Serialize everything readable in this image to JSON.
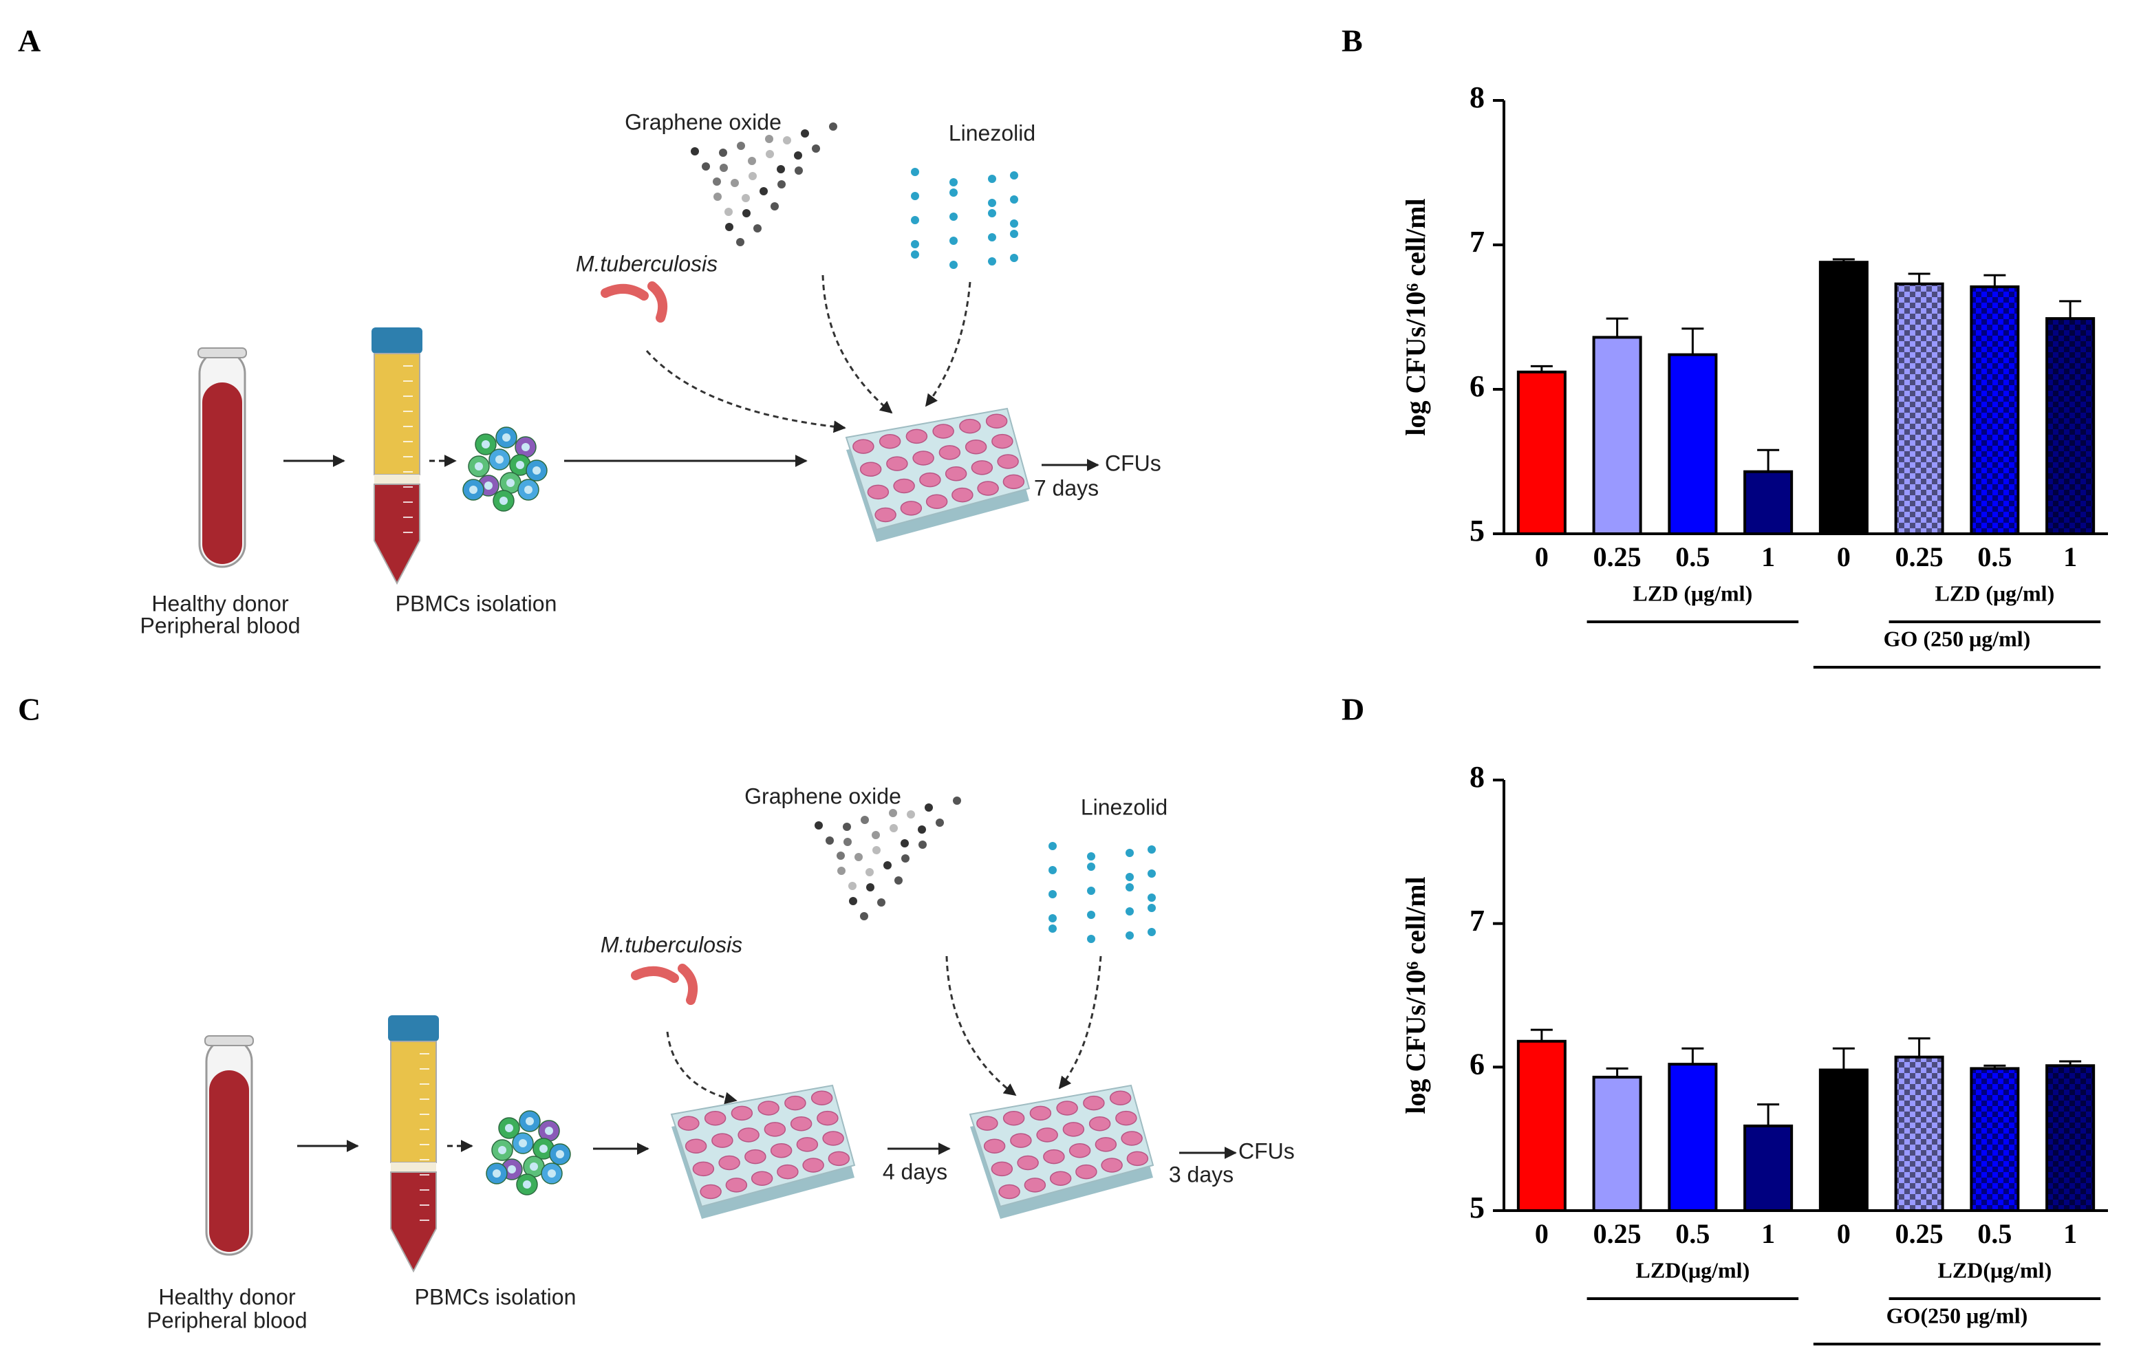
{
  "panel_labels": [
    "A",
    "B",
    "C",
    "D"
  ],
  "schematics": [
    {
      "graphene": "Graphene oxide",
      "linezolid": "Linezolid",
      "pathogen": "M.tuberculosis",
      "readout": "CFUs",
      "durations": [
        "7 days"
      ],
      "donor": [
        "Healthy donor",
        "Peripheral blood"
      ],
      "isolation": "PBMCs isolation"
    },
    {
      "graphene": "Graphene oxide",
      "linezolid": "Linezolid",
      "pathogen": "M.tuberculosis",
      "readout": "CFUs",
      "durations": [
        "4 days",
        "3 days"
      ],
      "donor": [
        "Healthy donor",
        "Peripheral blood"
      ],
      "isolation": "PBMCs isolation"
    }
  ],
  "chart_data": [
    {
      "type": "bar",
      "ylabel": "log CFUs/10⁶ cell/ml",
      "categories": [
        "0",
        "0.25",
        "0.5",
        "1",
        "0",
        "0.25",
        "0.5",
        "1"
      ],
      "values": [
        6.12,
        6.36,
        6.24,
        5.43,
        6.88,
        6.73,
        6.71,
        6.49
      ],
      "errors": [
        0.04,
        0.13,
        0.18,
        0.15,
        0.02,
        0.07,
        0.08,
        0.12
      ],
      "colors": [
        "#ff0000",
        "#9999ff",
        "#0000ff",
        "#000080",
        "#000000",
        "#9999ff",
        "#0000ff",
        "#000080"
      ],
      "patterns": [
        "solid",
        "solid",
        "solid",
        "solid",
        "solid",
        "checkered",
        "checkered",
        "checkered"
      ],
      "ylim": [
        5,
        8
      ],
      "yticks": [
        5,
        6,
        7,
        8
      ],
      "groups": [
        {
          "label": "LZD (μg/ml)",
          "from": 1,
          "to": 3
        },
        {
          "label": "LZD (μg/ml)",
          "from": 5,
          "to": 7
        },
        {
          "label": "GO (250 μg/ml)",
          "from": 4,
          "to": 7
        }
      ],
      "comparisons": [
        {
          "from": 0,
          "to": 3,
          "label": "*"
        },
        {
          "from": 0,
          "to": 4,
          "label": "****"
        },
        {
          "from": 0,
          "to": 5,
          "label": "***"
        },
        {
          "from": 0,
          "to": 6,
          "label": "***"
        }
      ]
    },
    {
      "type": "bar",
      "ylabel": "log CFUs/10⁶ cell/ml",
      "categories": [
        "0",
        "0.25",
        "0.5",
        "1",
        "0",
        "0.25",
        "0.5",
        "1"
      ],
      "values": [
        6.18,
        5.93,
        6.02,
        5.59,
        5.98,
        6.07,
        5.99,
        6.01
      ],
      "errors": [
        0.08,
        0.06,
        0.11,
        0.15,
        0.15,
        0.13,
        0.02,
        0.03
      ],
      "colors": [
        "#ff0000",
        "#9999ff",
        "#0000ff",
        "#000080",
        "#000000",
        "#9999ff",
        "#0000ff",
        "#000080"
      ],
      "patterns": [
        "solid",
        "solid",
        "solid",
        "solid",
        "solid",
        "checkered",
        "checkered",
        "checkered"
      ],
      "ylim": [
        5,
        8
      ],
      "yticks": [
        5,
        6,
        7,
        8
      ],
      "groups": [
        {
          "label": "LZD(μg/ml)",
          "from": 1,
          "to": 3
        },
        {
          "label": "LZD(μg/ml)",
          "from": 5,
          "to": 7
        },
        {
          "label": "GO(250 μg/ml)",
          "from": 4,
          "to": 7
        }
      ],
      "comparisons": [
        {
          "from": 0,
          "to": 3,
          "label": "**"
        }
      ]
    }
  ]
}
